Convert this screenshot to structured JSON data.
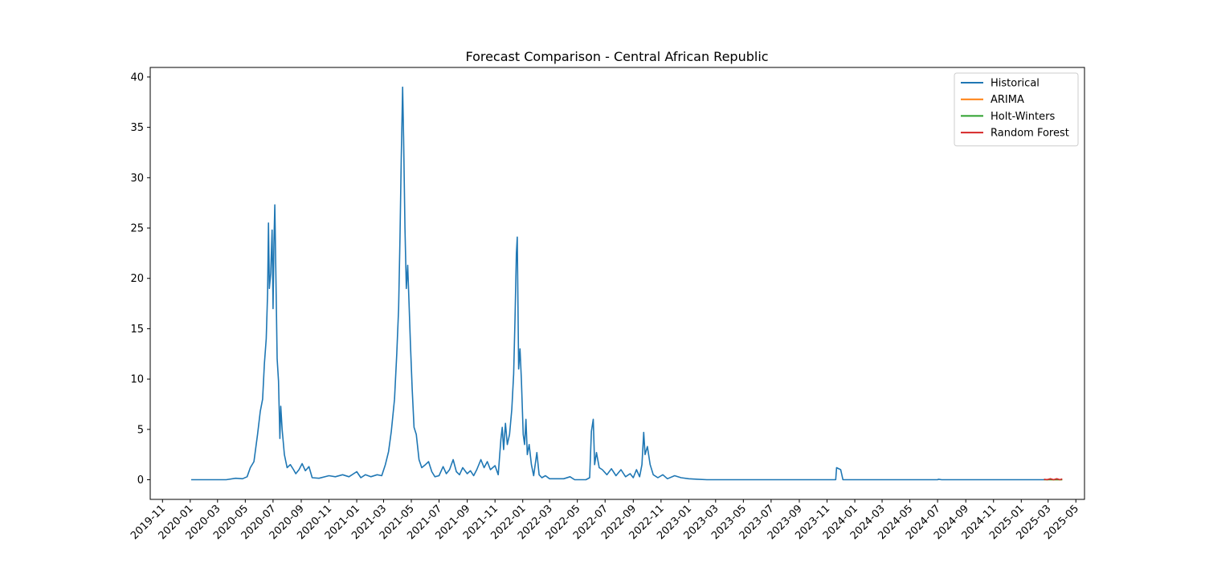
{
  "chart_data": {
    "type": "line",
    "title": "Forecast Comparison - Central African Republic",
    "xlabel": "",
    "ylabel": "",
    "x_axis": "date",
    "xlim": [
      "2019-10-05",
      "2025-05-20"
    ],
    "ylim": [
      -1.95,
      40.95
    ],
    "grid": false,
    "legend_position": "top-right",
    "x_ticks": [
      "2019-11",
      "2020-01",
      "2020-03",
      "2020-05",
      "2020-07",
      "2020-09",
      "2020-11",
      "2021-01",
      "2021-03",
      "2021-05",
      "2021-07",
      "2021-09",
      "2021-11",
      "2022-01",
      "2022-03",
      "2022-05",
      "2022-07",
      "2022-09",
      "2022-11",
      "2023-01",
      "2023-03",
      "2023-05",
      "2023-07",
      "2023-09",
      "2023-11",
      "2024-01",
      "2024-03",
      "2024-05",
      "2024-07",
      "2024-09",
      "2024-11",
      "2025-01",
      "2025-03",
      "2025-05"
    ],
    "y_ticks": [
      0,
      5,
      10,
      15,
      20,
      25,
      30,
      35,
      40
    ],
    "series": [
      {
        "name": "Historical",
        "color": "#1f77b4",
        "points": [
          [
            "2020-01-03",
            0
          ],
          [
            "2020-03-20",
            0
          ],
          [
            "2020-04-10",
            0.15
          ],
          [
            "2020-04-25",
            0.1
          ],
          [
            "2020-05-05",
            0.3
          ],
          [
            "2020-05-12",
            1.2
          ],
          [
            "2020-05-20",
            1.8
          ],
          [
            "2020-05-28",
            4.5
          ],
          [
            "2020-06-03",
            6.8
          ],
          [
            "2020-06-08",
            8.0
          ],
          [
            "2020-06-12",
            11.5
          ],
          [
            "2020-06-16",
            14.0
          ],
          [
            "2020-06-19",
            18.5
          ],
          [
            "2020-06-21",
            25.5
          ],
          [
            "2020-06-23",
            19.0
          ],
          [
            "2020-06-26",
            20.5
          ],
          [
            "2020-06-29",
            24.8
          ],
          [
            "2020-07-01",
            17.0
          ],
          [
            "2020-07-03",
            23.5
          ],
          [
            "2020-07-05",
            27.3
          ],
          [
            "2020-07-07",
            21.0
          ],
          [
            "2020-07-10",
            12.0
          ],
          [
            "2020-07-13",
            9.8
          ],
          [
            "2020-07-16",
            4.1
          ],
          [
            "2020-07-18",
            7.3
          ],
          [
            "2020-07-21",
            5.0
          ],
          [
            "2020-07-26",
            2.5
          ],
          [
            "2020-08-01",
            1.2
          ],
          [
            "2020-08-08",
            1.5
          ],
          [
            "2020-08-15",
            1.0
          ],
          [
            "2020-08-20",
            0.6
          ],
          [
            "2020-08-27",
            1.0
          ],
          [
            "2020-09-03",
            1.6
          ],
          [
            "2020-09-10",
            0.9
          ],
          [
            "2020-09-18",
            1.3
          ],
          [
            "2020-09-25",
            0.2
          ],
          [
            "2020-10-10",
            0.15
          ],
          [
            "2020-11-01",
            0.4
          ],
          [
            "2020-11-15",
            0.3
          ],
          [
            "2020-12-01",
            0.5
          ],
          [
            "2020-12-15",
            0.3
          ],
          [
            "2021-01-01",
            0.8
          ],
          [
            "2021-01-10",
            0.2
          ],
          [
            "2021-01-20",
            0.5
          ],
          [
            "2021-02-01",
            0.3
          ],
          [
            "2021-02-15",
            0.5
          ],
          [
            "2021-02-25",
            0.4
          ],
          [
            "2021-03-05",
            1.5
          ],
          [
            "2021-03-12",
            2.8
          ],
          [
            "2021-03-18",
            4.8
          ],
          [
            "2021-03-25",
            8.0
          ],
          [
            "2021-03-30",
            12.5
          ],
          [
            "2021-04-03",
            17.0
          ],
          [
            "2021-04-06",
            24.0
          ],
          [
            "2021-04-09",
            32.0
          ],
          [
            "2021-04-12",
            39.0
          ],
          [
            "2021-04-14",
            34.0
          ],
          [
            "2021-04-17",
            25.0
          ],
          [
            "2021-04-20",
            19.0
          ],
          [
            "2021-04-23",
            21.3
          ],
          [
            "2021-04-26",
            17.5
          ],
          [
            "2021-04-29",
            13.5
          ],
          [
            "2021-05-03",
            9.0
          ],
          [
            "2021-05-07",
            5.2
          ],
          [
            "2021-05-12",
            4.5
          ],
          [
            "2021-05-18",
            2.0
          ],
          [
            "2021-05-24",
            1.2
          ],
          [
            "2021-06-01",
            1.5
          ],
          [
            "2021-06-08",
            1.8
          ],
          [
            "2021-06-15",
            0.8
          ],
          [
            "2021-06-22",
            0.3
          ],
          [
            "2021-07-01",
            0.4
          ],
          [
            "2021-07-10",
            1.3
          ],
          [
            "2021-07-17",
            0.6
          ],
          [
            "2021-07-24",
            1.0
          ],
          [
            "2021-08-01",
            2.0
          ],
          [
            "2021-08-08",
            0.8
          ],
          [
            "2021-08-15",
            0.5
          ],
          [
            "2021-08-22",
            1.2
          ],
          [
            "2021-09-01",
            0.6
          ],
          [
            "2021-09-08",
            0.9
          ],
          [
            "2021-09-15",
            0.4
          ],
          [
            "2021-09-22",
            1.0
          ],
          [
            "2021-10-01",
            2.0
          ],
          [
            "2021-10-08",
            1.2
          ],
          [
            "2021-10-15",
            1.8
          ],
          [
            "2021-10-22",
            1.0
          ],
          [
            "2021-11-01",
            1.4
          ],
          [
            "2021-11-08",
            0.5
          ],
          [
            "2021-11-14",
            4.0
          ],
          [
            "2021-11-17",
            5.2
          ],
          [
            "2021-11-20",
            3.0
          ],
          [
            "2021-11-24",
            5.6
          ],
          [
            "2021-11-28",
            3.5
          ],
          [
            "2021-12-03",
            4.5
          ],
          [
            "2021-12-08",
            7.0
          ],
          [
            "2021-12-12",
            10.5
          ],
          [
            "2021-12-15",
            16.0
          ],
          [
            "2021-12-18",
            22.5
          ],
          [
            "2021-12-20",
            24.1
          ],
          [
            "2021-12-23",
            11.0
          ],
          [
            "2021-12-26",
            13.0
          ],
          [
            "2021-12-29",
            10.0
          ],
          [
            "2022-01-02",
            4.5
          ],
          [
            "2022-01-05",
            3.5
          ],
          [
            "2022-01-08",
            6.0
          ],
          [
            "2022-01-11",
            2.5
          ],
          [
            "2022-01-15",
            3.5
          ],
          [
            "2022-01-20",
            1.5
          ],
          [
            "2022-01-25",
            0.4
          ],
          [
            "2022-02-01",
            2.7
          ],
          [
            "2022-02-06",
            0.5
          ],
          [
            "2022-02-12",
            0.2
          ],
          [
            "2022-02-20",
            0.4
          ],
          [
            "2022-03-01",
            0.1
          ],
          [
            "2022-03-15",
            0.1
          ],
          [
            "2022-04-01",
            0.1
          ],
          [
            "2022-04-15",
            0.3
          ],
          [
            "2022-04-25",
            0
          ],
          [
            "2022-05-20",
            0
          ],
          [
            "2022-05-28",
            0.2
          ],
          [
            "2022-06-01",
            4.8
          ],
          [
            "2022-06-05",
            6.0
          ],
          [
            "2022-06-08",
            1.5
          ],
          [
            "2022-06-12",
            2.7
          ],
          [
            "2022-06-18",
            1.2
          ],
          [
            "2022-06-25",
            1.0
          ],
          [
            "2022-07-05",
            0.5
          ],
          [
            "2022-07-15",
            1.1
          ],
          [
            "2022-07-25",
            0.4
          ],
          [
            "2022-08-05",
            1.0
          ],
          [
            "2022-08-15",
            0.3
          ],
          [
            "2022-08-25",
            0.6
          ],
          [
            "2022-09-01",
            0.2
          ],
          [
            "2022-09-08",
            1.0
          ],
          [
            "2022-09-15",
            0.3
          ],
          [
            "2022-09-20",
            1.5
          ],
          [
            "2022-09-24",
            4.7
          ],
          [
            "2022-09-27",
            2.5
          ],
          [
            "2022-10-02",
            3.3
          ],
          [
            "2022-10-08",
            1.5
          ],
          [
            "2022-10-15",
            0.5
          ],
          [
            "2022-10-25",
            0.2
          ],
          [
            "2022-11-05",
            0.5
          ],
          [
            "2022-11-15",
            0.1
          ],
          [
            "2022-12-01",
            0.4
          ],
          [
            "2022-12-15",
            0.2
          ],
          [
            "2023-01-01",
            0.1
          ],
          [
            "2023-01-20",
            0.05
          ],
          [
            "2023-02-10",
            0
          ],
          [
            "2023-11-20",
            0
          ],
          [
            "2023-11-22",
            1.2
          ],
          [
            "2023-12-01",
            1.0
          ],
          [
            "2023-12-06",
            0
          ],
          [
            "2024-07-01",
            0
          ],
          [
            "2024-07-03",
            0.05
          ],
          [
            "2024-07-10",
            0
          ],
          [
            "2024-12-01",
            0
          ],
          [
            "2025-02-20",
            0
          ]
        ]
      },
      {
        "name": "ARIMA",
        "color": "#ff7f0e",
        "points": [
          [
            "2025-02-20",
            0
          ],
          [
            "2025-03-01",
            0.03
          ],
          [
            "2025-03-10",
            0
          ],
          [
            "2025-03-20",
            0.02
          ],
          [
            "2025-04-01",
            0
          ]
        ]
      },
      {
        "name": "Holt-Winters",
        "color": "#2ca02c",
        "points": [
          [
            "2025-02-20",
            0
          ],
          [
            "2025-03-05",
            0.02
          ],
          [
            "2025-03-15",
            0
          ],
          [
            "2025-04-01",
            0
          ]
        ]
      },
      {
        "name": "Random Forest",
        "color": "#d62728",
        "points": [
          [
            "2025-02-20",
            0.05
          ],
          [
            "2025-02-27",
            0
          ],
          [
            "2025-03-06",
            0.1
          ],
          [
            "2025-03-13",
            0
          ],
          [
            "2025-03-20",
            0.1
          ],
          [
            "2025-03-27",
            0
          ],
          [
            "2025-04-01",
            0.08
          ]
        ]
      }
    ]
  }
}
